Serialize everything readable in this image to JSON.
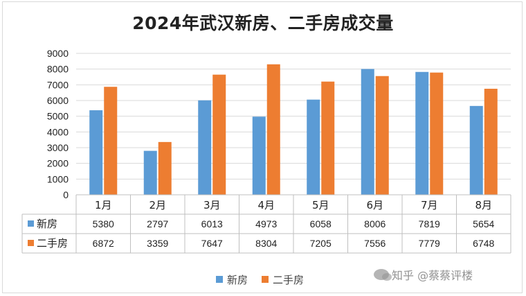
{
  "chart_data": {
    "type": "bar",
    "title": "2024年武汉新房、二手房成交量",
    "categories": [
      "1月",
      "2月",
      "3月",
      "4月",
      "5月",
      "6月",
      "7月",
      "8月"
    ],
    "series": [
      {
        "name": "新房",
        "color": "#5b9bd5",
        "values": [
          5380,
          2797,
          6013,
          4973,
          6058,
          8006,
          7819,
          5654
        ]
      },
      {
        "name": "二手房",
        "color": "#ed7d31",
        "values": [
          6872,
          3359,
          7647,
          8304,
          7205,
          7556,
          7779,
          6748
        ]
      }
    ],
    "ylim": [
      0,
      9000
    ],
    "yticks": [
      0,
      1000,
      2000,
      3000,
      4000,
      5000,
      6000,
      7000,
      8000,
      9000
    ],
    "grid": true,
    "data_table": true,
    "legend": "bottom"
  },
  "watermark": {
    "text": "知乎 @蔡蔡评楼",
    "icon": "wechat-logo-icon"
  }
}
